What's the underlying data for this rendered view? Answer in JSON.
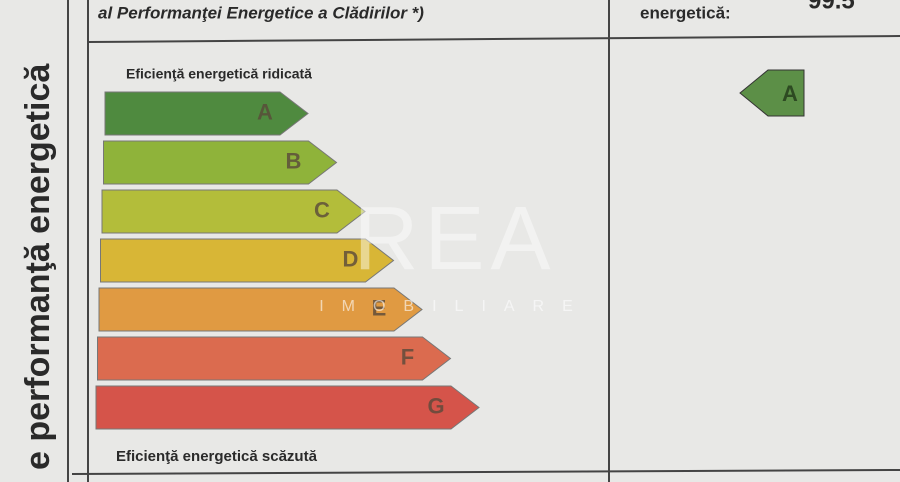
{
  "sidebar": {
    "title": "e performanţă energetică"
  },
  "header": {
    "left": "al Performanţei Energetice a Clădirilor *)",
    "right_label": "energetică:",
    "right_value": "99.5"
  },
  "scale": {
    "top_label": "Eficienţă energetică ridicată",
    "classes": [
      "A",
      "B",
      "C",
      "D",
      "E",
      "F",
      "G"
    ],
    "bottom_label": "Eficienţă energetică scăzută"
  },
  "rating": {
    "class": "A"
  },
  "watermark": {
    "brand": "REA",
    "sub": "IMOBILIARE"
  }
}
